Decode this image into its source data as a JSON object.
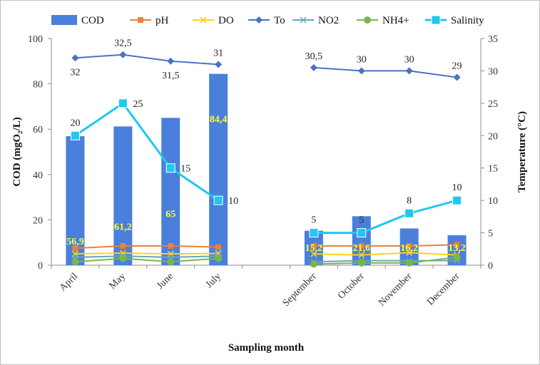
{
  "chart_data": {
    "type": "bar",
    "categories": [
      "April",
      "May",
      "June",
      "July",
      "",
      "September",
      "October",
      "November",
      "December"
    ],
    "xlabel": "Sampling  month",
    "ylabel": "COD (mgO₂/L)",
    "y2label": "Temperature  (°C)",
    "ylim": [
      0,
      100
    ],
    "yticks": [
      0,
      20,
      40,
      60,
      80,
      100
    ],
    "y2lim": [
      0,
      35
    ],
    "y2ticks": [
      0,
      5,
      10,
      15,
      20,
      25,
      30,
      35
    ],
    "grid": false,
    "legend_position": "top",
    "legend": [
      "COD",
      "pH",
      "DO",
      "To",
      "NO2",
      "NH4+",
      "Salinity"
    ],
    "series": [
      {
        "name": "COD",
        "type": "bar",
        "axis": "left",
        "color": "#4a7fdc",
        "values": [
          56.9,
          61.2,
          65,
          84.4,
          null,
          15.2,
          21.6,
          16.2,
          13.2
        ],
        "labels": [
          "56,9",
          "61,2",
          "65",
          "84,4",
          "",
          "15,2",
          "21,6",
          "16,2",
          "13,2"
        ]
      },
      {
        "name": "pH",
        "type": "line",
        "axis": "left",
        "color": "#e8823a",
        "values": [
          7.5,
          8.5,
          8.5,
          8.0,
          null,
          8.5,
          8.5,
          8.5,
          9.0
        ]
      },
      {
        "name": "DO",
        "type": "line",
        "axis": "left",
        "color": "#ffd21a",
        "values": [
          5,
          5.3,
          5,
          5.2,
          null,
          5,
          4.5,
          5.5,
          4.5
        ]
      },
      {
        "name": "To",
        "type": "line",
        "axis": "right",
        "color": "#4a72c4",
        "values": [
          32,
          32.5,
          31.5,
          31,
          null,
          30.5,
          30,
          30,
          29
        ],
        "labels": [
          "32",
          "32,5",
          "31,5",
          "31",
          "",
          "30,5",
          "30",
          "30",
          "29"
        ]
      },
      {
        "name": "NO2",
        "type": "line",
        "axis": "left",
        "color": "#6aa6b8",
        "values": [
          3.5,
          4,
          3.5,
          4,
          null,
          1.5,
          2,
          2,
          2
        ]
      },
      {
        "name": "NH4+",
        "type": "line",
        "axis": "left",
        "color": "#79b74b",
        "values": [
          1.5,
          3,
          1.5,
          3,
          null,
          0.5,
          1,
          1,
          3.5
        ]
      },
      {
        "name": "Salinity",
        "type": "line",
        "axis": "right",
        "color": "#1ec8f0",
        "values": [
          20,
          25,
          15,
          10,
          null,
          5,
          5,
          8,
          10
        ],
        "labels": [
          "20",
          "25",
          "15",
          "10",
          "",
          "5",
          "5",
          "8",
          "10"
        ]
      }
    ]
  }
}
